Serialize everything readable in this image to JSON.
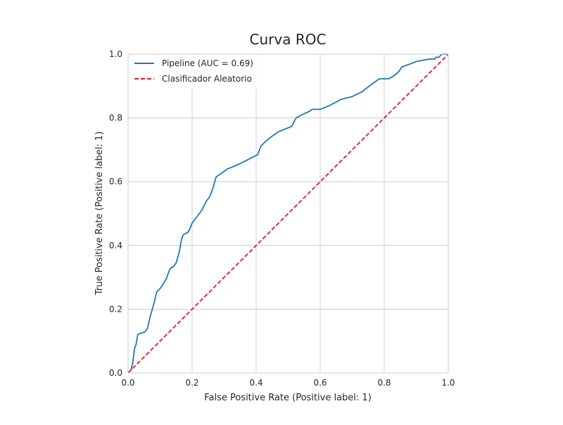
{
  "chart_data": {
    "type": "line",
    "title": "Curva ROC",
    "xlabel": "False Positive Rate (Positive label: 1)",
    "ylabel": "True Positive Rate (Positive label: 1)",
    "xlim": [
      0.0,
      1.0
    ],
    "ylim": [
      0.0,
      1.0
    ],
    "xticks": [
      "0.0",
      "0.2",
      "0.4",
      "0.6",
      "0.8",
      "1.0"
    ],
    "yticks": [
      "0.0",
      "0.2",
      "0.4",
      "0.6",
      "0.8",
      "1.0"
    ],
    "grid": true,
    "legend_position": "top-left",
    "series": [
      {
        "name": "Pipeline (AUC = 0.69)",
        "color": "#1f77b4",
        "line_style": "solid",
        "x": [
          0.0,
          0.005,
          0.01,
          0.015,
          0.02,
          0.025,
          0.03,
          0.04,
          0.05,
          0.055,
          0.06,
          0.065,
          0.07,
          0.08,
          0.09,
          0.1,
          0.11,
          0.12,
          0.13,
          0.135,
          0.14,
          0.15,
          0.16,
          0.165,
          0.17,
          0.175,
          0.18,
          0.185,
          0.19,
          0.2,
          0.215,
          0.23,
          0.245,
          0.255,
          0.265,
          0.275,
          0.29,
          0.31,
          0.325,
          0.35,
          0.38,
          0.405,
          0.415,
          0.43,
          0.45,
          0.47,
          0.49,
          0.51,
          0.525,
          0.545,
          0.565,
          0.575,
          0.6,
          0.625,
          0.65,
          0.665,
          0.68,
          0.7,
          0.73,
          0.76,
          0.785,
          0.8,
          0.815,
          0.83,
          0.845,
          0.855,
          0.875,
          0.9,
          0.925,
          0.945,
          0.955,
          0.958,
          0.96,
          0.97,
          0.98,
          0.99,
          1.0
        ],
        "y": [
          0.0,
          0.005,
          0.012,
          0.035,
          0.075,
          0.09,
          0.12,
          0.125,
          0.127,
          0.132,
          0.138,
          0.16,
          0.18,
          0.215,
          0.255,
          0.265,
          0.28,
          0.297,
          0.325,
          0.33,
          0.332,
          0.345,
          0.38,
          0.41,
          0.43,
          0.435,
          0.438,
          0.44,
          0.445,
          0.47,
          0.49,
          0.51,
          0.54,
          0.553,
          0.58,
          0.615,
          0.625,
          0.64,
          0.646,
          0.657,
          0.672,
          0.685,
          0.712,
          0.727,
          0.743,
          0.757,
          0.765,
          0.773,
          0.8,
          0.811,
          0.82,
          0.827,
          0.827,
          0.837,
          0.85,
          0.858,
          0.862,
          0.867,
          0.882,
          0.905,
          0.923,
          0.923,
          0.923,
          0.932,
          0.945,
          0.96,
          0.967,
          0.977,
          0.982,
          0.985,
          0.985,
          0.985,
          0.99,
          0.99,
          1.0,
          1.0,
          1.0
        ]
      },
      {
        "name": "Clasificador Aleatorio",
        "color": "#e31a1c",
        "line_style": "dashed",
        "x": [
          0.0,
          1.0
        ],
        "y": [
          0.0,
          1.0
        ]
      }
    ]
  }
}
